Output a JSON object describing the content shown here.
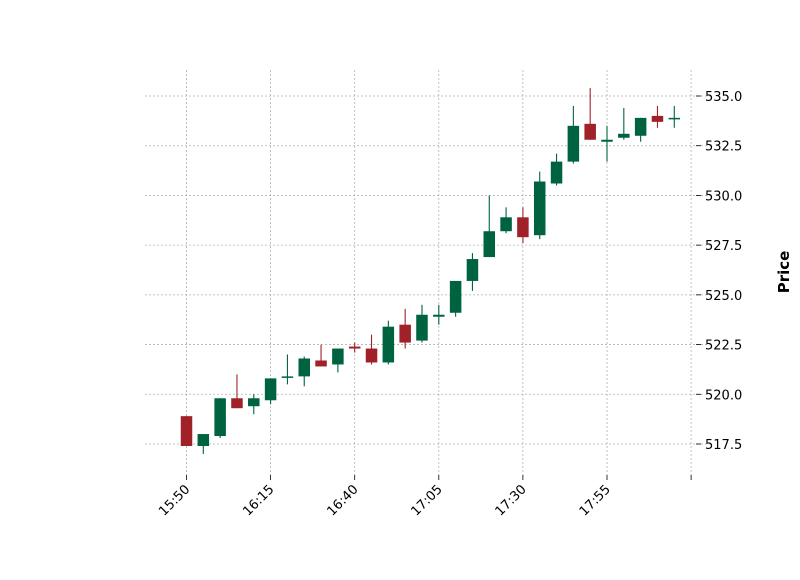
{
  "chart_data": {
    "type": "candlestick",
    "title": "",
    "xlabel": "",
    "ylabel": "Price",
    "ylim": [
      516.1,
      536.3
    ],
    "grid": true,
    "colors": {
      "up": "#006340",
      "down": "#a02128",
      "wick_up": "#006340",
      "wick_down": "#a02128"
    },
    "x_tick_labels": [
      "15:50",
      "16:15",
      "16:40",
      "17:05",
      "17:30",
      "17:55",
      ""
    ],
    "y_ticks": [
      517.5,
      520.0,
      522.5,
      525.0,
      527.5,
      530.0,
      532.5,
      535.0
    ],
    "y_tick_labels": [
      "517.5",
      "520.0",
      "522.5",
      "525.0",
      "527.5",
      "530.0",
      "532.5",
      "535.0"
    ],
    "candles": [
      {
        "open": 518.9,
        "high": 518.9,
        "low": 517.4,
        "close": 517.4
      },
      {
        "open": 517.4,
        "high": 518.0,
        "low": 517.0,
        "close": 518.0
      },
      {
        "open": 517.9,
        "high": 519.8,
        "low": 517.8,
        "close": 519.8
      },
      {
        "open": 519.8,
        "high": 521.0,
        "low": 519.3,
        "close": 519.3
      },
      {
        "open": 519.4,
        "high": 520.0,
        "low": 519.0,
        "close": 519.8
      },
      {
        "open": 519.7,
        "high": 520.8,
        "low": 519.5,
        "close": 520.8
      },
      {
        "open": 520.9,
        "high": 522.0,
        "low": 520.5,
        "close": 520.9
      },
      {
        "open": 520.9,
        "high": 521.9,
        "low": 520.4,
        "close": 521.8
      },
      {
        "open": 521.7,
        "high": 522.5,
        "low": 521.4,
        "close": 521.4
      },
      {
        "open": 521.5,
        "high": 522.3,
        "low": 521.1,
        "close": 522.3
      },
      {
        "open": 522.4,
        "high": 522.6,
        "low": 522.1,
        "close": 522.3
      },
      {
        "open": 522.3,
        "high": 523.0,
        "low": 521.5,
        "close": 521.6
      },
      {
        "open": 521.6,
        "high": 523.7,
        "low": 521.5,
        "close": 523.4
      },
      {
        "open": 523.5,
        "high": 524.3,
        "low": 522.3,
        "close": 522.6
      },
      {
        "open": 522.7,
        "high": 524.5,
        "low": 522.6,
        "close": 524.0
      },
      {
        "open": 523.9,
        "high": 524.5,
        "low": 523.5,
        "close": 524.0
      },
      {
        "open": 524.1,
        "high": 525.7,
        "low": 523.9,
        "close": 525.7
      },
      {
        "open": 525.7,
        "high": 527.1,
        "low": 525.2,
        "close": 526.8
      },
      {
        "open": 526.9,
        "high": 530.0,
        "low": 526.9,
        "close": 528.2
      },
      {
        "open": 528.2,
        "high": 529.4,
        "low": 528.1,
        "close": 528.9
      },
      {
        "open": 528.9,
        "high": 529.4,
        "low": 527.6,
        "close": 527.9
      },
      {
        "open": 528.0,
        "high": 531.2,
        "low": 527.8,
        "close": 530.7
      },
      {
        "open": 530.6,
        "high": 532.1,
        "low": 530.5,
        "close": 531.7
      },
      {
        "open": 531.7,
        "high": 534.5,
        "low": 531.6,
        "close": 533.5
      },
      {
        "open": 533.6,
        "high": 535.4,
        "low": 532.8,
        "close": 532.8
      },
      {
        "open": 532.7,
        "high": 533.5,
        "low": 531.7,
        "close": 532.8
      },
      {
        "open": 532.9,
        "high": 534.4,
        "low": 532.8,
        "close": 533.1
      },
      {
        "open": 533.0,
        "high": 533.9,
        "low": 532.7,
        "close": 533.9
      },
      {
        "open": 534.0,
        "high": 534.5,
        "low": 533.4,
        "close": 533.7
      },
      {
        "open": 533.9,
        "high": 534.5,
        "low": 533.4,
        "close": 533.9
      }
    ]
  }
}
